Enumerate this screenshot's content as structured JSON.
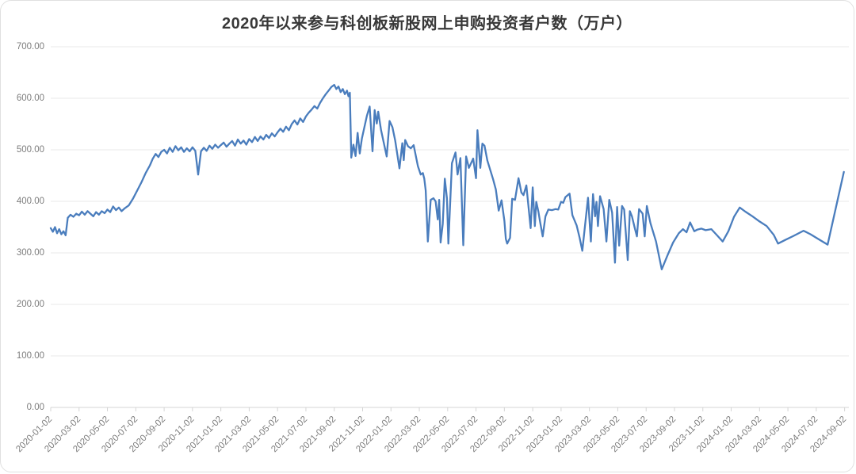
{
  "card": {
    "background": "#ffffff",
    "border_color": "#e0e0e0"
  },
  "chart_data": {
    "type": "line",
    "title": "2020年以来参与科创板新股网上申购投资者户数（万户）",
    "xlabel": "",
    "ylabel": "",
    "unit": "万户",
    "grid": "horizontal",
    "legend_position": "none",
    "ylim": [
      0,
      700
    ],
    "y_ticks": [
      {
        "value": 0,
        "label": "0.00"
      },
      {
        "value": 100,
        "label": "100.00"
      },
      {
        "value": 200,
        "label": "200.00"
      },
      {
        "value": 300,
        "label": "300.00"
      },
      {
        "value": 400,
        "label": "400.00"
      },
      {
        "value": 500,
        "label": "500.00"
      },
      {
        "value": 600,
        "label": "600.00"
      },
      {
        "value": 700,
        "label": "700.00"
      }
    ],
    "x_tick_labels": [
      "2020-01-02",
      "2020-03-02",
      "2020-05-02",
      "2020-07-02",
      "2020-09-02",
      "2020-11-02",
      "2021-01-02",
      "2021-03-02",
      "2021-05-02",
      "2021-07-02",
      "2021-09-02",
      "2021-11-02",
      "2022-01-02",
      "2022-03-02",
      "2022-05-02",
      "2022-07-02",
      "2022-09-02",
      "2022-11-02",
      "2023-01-02",
      "2023-03-02",
      "2023-05-02",
      "2023-07-02",
      "2023-09-02",
      "2023-11-02",
      "2024-01-02",
      "2024-03-02",
      "2024-05-02",
      "2024-07-02",
      "2024-09-02"
    ],
    "x_tick_interval_months": 2,
    "x_domain_months": [
      0,
      56.3
    ],
    "x_unit": "months_since_2020-01-02",
    "series": [
      {
        "color": "#4a7dbd",
        "points": [
          [
            0,
            348
          ],
          [
            0.15,
            341
          ],
          [
            0.3,
            350
          ],
          [
            0.45,
            338
          ],
          [
            0.6,
            346
          ],
          [
            0.75,
            336
          ],
          [
            0.9,
            342
          ],
          [
            1.05,
            334
          ],
          [
            1.2,
            368
          ],
          [
            1.4,
            374
          ],
          [
            1.6,
            370
          ],
          [
            1.8,
            376
          ],
          [
            2,
            373
          ],
          [
            2.2,
            380
          ],
          [
            2.4,
            374
          ],
          [
            2.6,
            381
          ],
          [
            2.8,
            376
          ],
          [
            3,
            371
          ],
          [
            3.2,
            379
          ],
          [
            3.4,
            374
          ],
          [
            3.6,
            381
          ],
          [
            3.8,
            377
          ],
          [
            4,
            384
          ],
          [
            4.2,
            379
          ],
          [
            4.4,
            390
          ],
          [
            4.6,
            383
          ],
          [
            4.8,
            388
          ],
          [
            5,
            381
          ],
          [
            5.2,
            386
          ],
          [
            5.5,
            392
          ],
          [
            5.8,
            405
          ],
          [
            6.1,
            421
          ],
          [
            6.4,
            437
          ],
          [
            6.7,
            455
          ],
          [
            7,
            470
          ],
          [
            7.2,
            483
          ],
          [
            7.4,
            492
          ],
          [
            7.6,
            486
          ],
          [
            7.8,
            496
          ],
          [
            8,
            500
          ],
          [
            8.2,
            493
          ],
          [
            8.4,
            504
          ],
          [
            8.6,
            496
          ],
          [
            8.8,
            507
          ],
          [
            9,
            499
          ],
          [
            9.2,
            505
          ],
          [
            9.4,
            496
          ],
          [
            9.6,
            503
          ],
          [
            9.8,
            497
          ],
          [
            10,
            505
          ],
          [
            10.2,
            498
          ],
          [
            10.4,
            452
          ],
          [
            10.6,
            497
          ],
          [
            10.8,
            504
          ],
          [
            11,
            498
          ],
          [
            11.2,
            508
          ],
          [
            11.4,
            502
          ],
          [
            11.6,
            510
          ],
          [
            11.8,
            504
          ],
          [
            12,
            509
          ],
          [
            12.2,
            514
          ],
          [
            12.4,
            506
          ],
          [
            12.6,
            512
          ],
          [
            12.8,
            517
          ],
          [
            13,
            508
          ],
          [
            13.2,
            520
          ],
          [
            13.4,
            512
          ],
          [
            13.6,
            518
          ],
          [
            13.8,
            510
          ],
          [
            14,
            521
          ],
          [
            14.2,
            515
          ],
          [
            14.4,
            525
          ],
          [
            14.6,
            517
          ],
          [
            14.8,
            526
          ],
          [
            15,
            520
          ],
          [
            15.2,
            529
          ],
          [
            15.4,
            523
          ],
          [
            15.6,
            532
          ],
          [
            15.8,
            526
          ],
          [
            16,
            534
          ],
          [
            16.2,
            541
          ],
          [
            16.4,
            535
          ],
          [
            16.6,
            545
          ],
          [
            16.8,
            538
          ],
          [
            17,
            550
          ],
          [
            17.2,
            557
          ],
          [
            17.4,
            549
          ],
          [
            17.6,
            561
          ],
          [
            17.8,
            554
          ],
          [
            18,
            565
          ],
          [
            18.2,
            572
          ],
          [
            18.4,
            578
          ],
          [
            18.6,
            585
          ],
          [
            18.8,
            580
          ],
          [
            19,
            591
          ],
          [
            19.2,
            600
          ],
          [
            19.4,
            608
          ],
          [
            19.6,
            615
          ],
          [
            19.8,
            622
          ],
          [
            20,
            626
          ],
          [
            20.15,
            618
          ],
          [
            20.3,
            623
          ],
          [
            20.45,
            612
          ],
          [
            20.6,
            618
          ],
          [
            20.75,
            608
          ],
          [
            20.9,
            615
          ],
          [
            21,
            604
          ],
          [
            21.1,
            611
          ],
          [
            21.2,
            485
          ],
          [
            21.35,
            510
          ],
          [
            21.5,
            488
          ],
          [
            21.65,
            533
          ],
          [
            21.8,
            493
          ],
          [
            21.95,
            522
          ],
          [
            22.3,
            566
          ],
          [
            22.5,
            584
          ],
          [
            22.6,
            540
          ],
          [
            22.7,
            497
          ],
          [
            22.85,
            577
          ],
          [
            23,
            551
          ],
          [
            23.1,
            574
          ],
          [
            23.3,
            538
          ],
          [
            23.7,
            487
          ],
          [
            23.9,
            556
          ],
          [
            24.1,
            544
          ],
          [
            24.3,
            518
          ],
          [
            24.6,
            464
          ],
          [
            24.8,
            513
          ],
          [
            24.9,
            480
          ],
          [
            25,
            519
          ],
          [
            25.2,
            507
          ],
          [
            25.4,
            503
          ],
          [
            25.6,
            509
          ],
          [
            25.9,
            468
          ],
          [
            26.1,
            452
          ],
          [
            26.25,
            455
          ],
          [
            26.35,
            444
          ],
          [
            26.45,
            421
          ],
          [
            26.6,
            322
          ],
          [
            26.8,
            403
          ],
          [
            27,
            406
          ],
          [
            27.15,
            400
          ],
          [
            27.3,
            365
          ],
          [
            27.4,
            403
          ],
          [
            27.5,
            320
          ],
          [
            27.65,
            356
          ],
          [
            27.8,
            444
          ],
          [
            27.95,
            406
          ],
          [
            28.05,
            318
          ],
          [
            28.3,
            474
          ],
          [
            28.55,
            495
          ],
          [
            28.7,
            452
          ],
          [
            28.9,
            484
          ],
          [
            29.1,
            315
          ],
          [
            29.3,
            487
          ],
          [
            29.5,
            465
          ],
          [
            29.8,
            483
          ],
          [
            30,
            445
          ],
          [
            30.1,
            538
          ],
          [
            30.3,
            465
          ],
          [
            30.45,
            512
          ],
          [
            30.6,
            508
          ],
          [
            30.8,
            479
          ],
          [
            31.2,
            443
          ],
          [
            31.4,
            423
          ],
          [
            31.6,
            382
          ],
          [
            31.8,
            402
          ],
          [
            32,
            362
          ],
          [
            32.1,
            327
          ],
          [
            32.2,
            318
          ],
          [
            32.4,
            329
          ],
          [
            32.55,
            405
          ],
          [
            32.75,
            403
          ],
          [
            33,
            445
          ],
          [
            33.2,
            417
          ],
          [
            33.35,
            412
          ],
          [
            33.55,
            431
          ],
          [
            33.85,
            348
          ],
          [
            34,
            427
          ],
          [
            34.15,
            352
          ],
          [
            34.25,
            399
          ],
          [
            34.4,
            380
          ],
          [
            34.5,
            363
          ],
          [
            34.7,
            332
          ],
          [
            34.9,
            371
          ],
          [
            35.1,
            384
          ],
          [
            35.35,
            383
          ],
          [
            35.6,
            385
          ],
          [
            35.8,
            384
          ],
          [
            36,
            399
          ],
          [
            36.15,
            397
          ],
          [
            36.3,
            408
          ],
          [
            36.6,
            415
          ],
          [
            36.8,
            373
          ],
          [
            37.1,
            353
          ],
          [
            37.3,
            330
          ],
          [
            37.5,
            304
          ],
          [
            37.9,
            407
          ],
          [
            38.1,
            322
          ],
          [
            38.25,
            414
          ],
          [
            38.4,
            371
          ],
          [
            38.5,
            399
          ],
          [
            38.6,
            352
          ],
          [
            38.75,
            410
          ],
          [
            39,
            385
          ],
          [
            39.2,
            322
          ],
          [
            39.4,
            403
          ],
          [
            39.6,
            378
          ],
          [
            39.8,
            281
          ],
          [
            39.95,
            389
          ],
          [
            40.1,
            314
          ],
          [
            40.3,
            391
          ],
          [
            40.45,
            384
          ],
          [
            40.7,
            286
          ],
          [
            40.85,
            381
          ],
          [
            41,
            371
          ],
          [
            41.2,
            348
          ],
          [
            41.35,
            332
          ],
          [
            41.5,
            385
          ],
          [
            41.75,
            376
          ],
          [
            41.9,
            332
          ],
          [
            42.05,
            391
          ],
          [
            42.3,
            358
          ],
          [
            42.7,
            322
          ],
          [
            43.1,
            268
          ],
          [
            43.5,
            295
          ],
          [
            43.9,
            320
          ],
          [
            44.3,
            338
          ],
          [
            44.6,
            346
          ],
          [
            44.85,
            340
          ],
          [
            45.1,
            359
          ],
          [
            45.4,
            342
          ],
          [
            45.6,
            345
          ],
          [
            45.9,
            347
          ],
          [
            46.2,
            344
          ],
          [
            46.6,
            346
          ],
          [
            47,
            334
          ],
          [
            47.4,
            322
          ],
          [
            47.8,
            342
          ],
          [
            48.2,
            370
          ],
          [
            48.6,
            388
          ],
          [
            49,
            380
          ],
          [
            49.5,
            371
          ],
          [
            50,
            361
          ],
          [
            50.5,
            352
          ],
          [
            51,
            335
          ],
          [
            51.3,
            318
          ],
          [
            51.8,
            325
          ],
          [
            52.4,
            333
          ],
          [
            53.1,
            343
          ],
          [
            53.6,
            336
          ],
          [
            54.2,
            326
          ],
          [
            54.8,
            316
          ],
          [
            55.95,
            457
          ]
        ]
      }
    ]
  },
  "style": {
    "line_color": "#4a7dbd",
    "grid_color": "#e8e8e8",
    "axis_color": "#d4d4d4",
    "tick_label_color": "#7d7d7d",
    "title_color": "#383838"
  }
}
